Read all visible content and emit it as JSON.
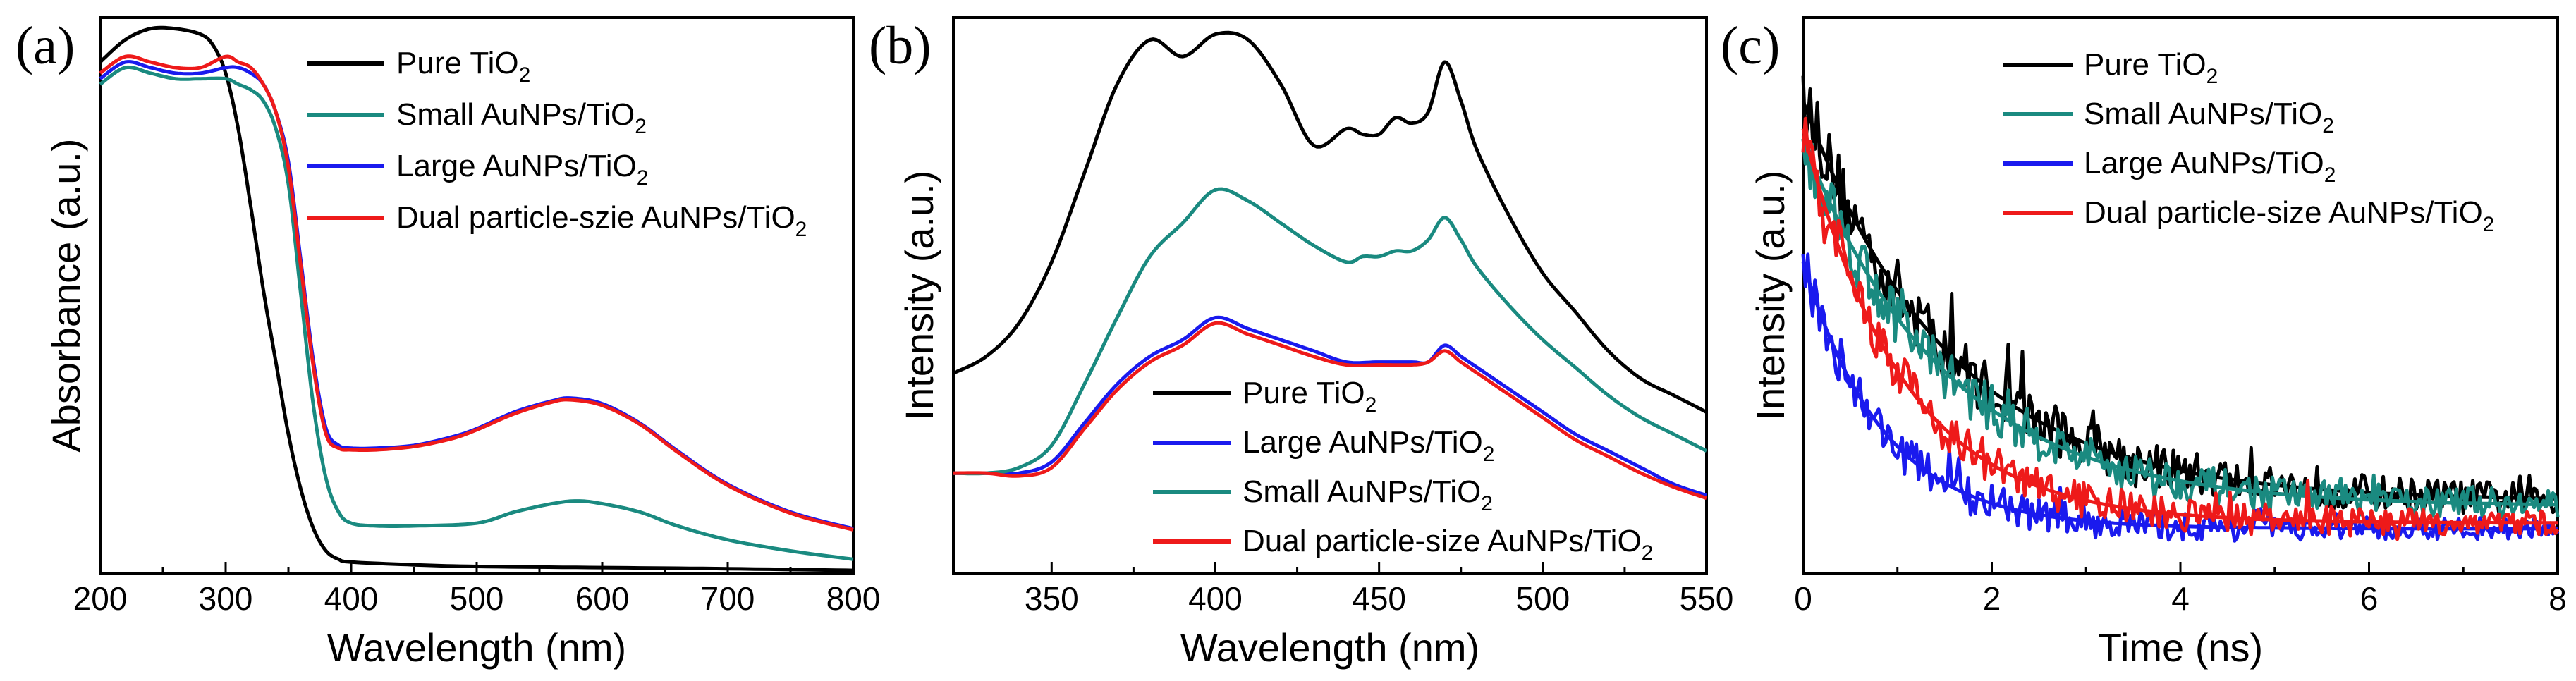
{
  "chart_data": [
    {
      "panel": "(a)",
      "type": "line",
      "xlabel": "Wavelength (nm)",
      "ylabel": "Absorbance (a.u.)",
      "xlim": [
        200,
        800
      ],
      "ylim": [
        0,
        1.0
      ],
      "xticks": [
        200,
        300,
        400,
        500,
        600,
        700,
        800
      ],
      "legend_position": "top-right",
      "series": [
        {
          "name": "Pure TiO2",
          "label_main": "Pure TiO",
          "label_sub": "2",
          "label_after": "",
          "color": "#000000",
          "x": [
            200,
            220,
            240,
            260,
            280,
            290,
            300,
            310,
            320,
            330,
            340,
            350,
            360,
            370,
            380,
            390,
            400,
            450,
            500,
            600,
            700,
            800
          ],
          "y": [
            0.92,
            0.96,
            0.98,
            0.98,
            0.97,
            0.95,
            0.9,
            0.8,
            0.66,
            0.51,
            0.38,
            0.25,
            0.15,
            0.08,
            0.04,
            0.025,
            0.02,
            0.015,
            0.012,
            0.01,
            0.008,
            0.005
          ]
        },
        {
          "name": "Small AuNPs/TiO2",
          "label_main": "Small AuNPs/TiO",
          "label_sub": "2",
          "label_after": "",
          "color": "#1a8a80",
          "x": [
            200,
            220,
            240,
            260,
            280,
            300,
            310,
            320,
            330,
            340,
            350,
            360,
            370,
            380,
            390,
            400,
            420,
            450,
            500,
            530,
            560,
            580,
            600,
            630,
            660,
            700,
            750,
            800
          ],
          "y": [
            0.88,
            0.91,
            0.9,
            0.89,
            0.89,
            0.89,
            0.88,
            0.87,
            0.85,
            0.8,
            0.7,
            0.5,
            0.3,
            0.17,
            0.11,
            0.09,
            0.085,
            0.085,
            0.09,
            0.11,
            0.125,
            0.13,
            0.125,
            0.11,
            0.085,
            0.06,
            0.04,
            0.025
          ]
        },
        {
          "name": "Large AuNPs/TiO2",
          "label_main": "Large AuNPs/TiO",
          "label_sub": "2",
          "label_after": "",
          "color": "#1a1aee",
          "x": [
            200,
            220,
            240,
            260,
            280,
            300,
            310,
            320,
            330,
            340,
            350,
            360,
            370,
            380,
            390,
            400,
            420,
            450,
            480,
            500,
            530,
            560,
            575,
            600,
            630,
            660,
            700,
            750,
            800
          ],
          "y": [
            0.89,
            0.92,
            0.91,
            0.9,
            0.9,
            0.91,
            0.91,
            0.9,
            0.88,
            0.83,
            0.74,
            0.56,
            0.38,
            0.26,
            0.23,
            0.225,
            0.225,
            0.23,
            0.245,
            0.26,
            0.29,
            0.31,
            0.315,
            0.305,
            0.27,
            0.22,
            0.16,
            0.11,
            0.08
          ]
        },
        {
          "name": "Dual particle-szie AuNPs/TiO2",
          "label_main": "Dual particle-szie AuNPs/TiO",
          "label_sub": "2",
          "label_after": "",
          "color": "#ee1a1a",
          "x": [
            200,
            220,
            240,
            260,
            280,
            300,
            310,
            320,
            330,
            340,
            350,
            360,
            370,
            380,
            390,
            400,
            420,
            450,
            480,
            500,
            530,
            560,
            575,
            600,
            630,
            660,
            700,
            750,
            800
          ],
          "y": [
            0.9,
            0.93,
            0.92,
            0.91,
            0.91,
            0.93,
            0.92,
            0.91,
            0.88,
            0.83,
            0.73,
            0.55,
            0.37,
            0.25,
            0.225,
            0.222,
            0.222,
            0.228,
            0.242,
            0.258,
            0.287,
            0.308,
            0.312,
            0.302,
            0.268,
            0.218,
            0.158,
            0.108,
            0.078
          ]
        }
      ]
    },
    {
      "panel": "(b)",
      "type": "line",
      "xlabel": "Wavelength (nm)",
      "ylabel": "Intensity (a.u.)",
      "xlim": [
        320,
        550
      ],
      "ylim": [
        0,
        1.0
      ],
      "xticks": [
        350,
        400,
        450,
        500,
        550
      ],
      "legend_position": "bottom-right",
      "series": [
        {
          "name": "Pure TiO2",
          "label_main": "Pure TiO",
          "label_sub": "2",
          "label_after": "",
          "color": "#000000",
          "x": [
            320,
            330,
            340,
            350,
            360,
            370,
            380,
            390,
            400,
            410,
            420,
            430,
            440,
            445,
            450,
            455,
            460,
            465,
            470,
            475,
            480,
            490,
            500,
            510,
            520,
            530,
            540,
            550
          ],
          "y": [
            0.36,
            0.39,
            0.45,
            0.56,
            0.72,
            0.88,
            0.96,
            0.93,
            0.97,
            0.96,
            0.88,
            0.77,
            0.8,
            0.79,
            0.79,
            0.82,
            0.81,
            0.83,
            0.92,
            0.85,
            0.76,
            0.64,
            0.54,
            0.47,
            0.4,
            0.35,
            0.32,
            0.29
          ]
        },
        {
          "name": "Large AuNPs/TiO2",
          "label_main": "Large AuNPs/TiO",
          "label_sub": "2",
          "label_after": "",
          "color": "#1a1aee",
          "x": [
            320,
            330,
            340,
            350,
            360,
            370,
            380,
            390,
            400,
            410,
            420,
            430,
            440,
            450,
            460,
            465,
            470,
            475,
            480,
            490,
            500,
            510,
            520,
            530,
            540,
            550
          ],
          "y": [
            0.18,
            0.18,
            0.18,
            0.2,
            0.27,
            0.34,
            0.39,
            0.42,
            0.46,
            0.44,
            0.42,
            0.4,
            0.38,
            0.38,
            0.38,
            0.38,
            0.41,
            0.39,
            0.37,
            0.33,
            0.29,
            0.25,
            0.22,
            0.19,
            0.16,
            0.14
          ]
        },
        {
          "name": "Small AuNPs/TiO2",
          "label_main": "Small AuNPs/TiO",
          "label_sub": "2",
          "label_after": "",
          "color": "#1a8a80",
          "x": [
            320,
            330,
            340,
            350,
            360,
            370,
            380,
            390,
            400,
            410,
            420,
            430,
            440,
            445,
            450,
            455,
            460,
            465,
            470,
            475,
            480,
            490,
            500,
            510,
            520,
            530,
            540,
            550
          ],
          "y": [
            0.18,
            0.18,
            0.19,
            0.23,
            0.34,
            0.46,
            0.57,
            0.63,
            0.69,
            0.67,
            0.63,
            0.59,
            0.56,
            0.57,
            0.57,
            0.58,
            0.58,
            0.6,
            0.64,
            0.6,
            0.55,
            0.48,
            0.42,
            0.37,
            0.32,
            0.28,
            0.25,
            0.22
          ]
        },
        {
          "name": "Dual particle-size AuNPs/TiO2",
          "label_main": "Dual particle-size AuNPs/TiO",
          "label_sub": "2",
          "label_after": "",
          "color": "#ee1a1a",
          "x": [
            320,
            330,
            340,
            350,
            360,
            370,
            380,
            390,
            400,
            410,
            420,
            430,
            440,
            450,
            460,
            465,
            470,
            475,
            480,
            490,
            500,
            510,
            520,
            530,
            540,
            550
          ],
          "y": [
            0.18,
            0.18,
            0.175,
            0.19,
            0.26,
            0.33,
            0.38,
            0.41,
            0.45,
            0.43,
            0.41,
            0.39,
            0.375,
            0.375,
            0.375,
            0.38,
            0.4,
            0.38,
            0.36,
            0.32,
            0.28,
            0.24,
            0.21,
            0.18,
            0.155,
            0.135
          ]
        }
      ]
    },
    {
      "panel": "(c)",
      "type": "line",
      "xlabel": "Time (ns)",
      "ylabel": "Intensity (a.u.)",
      "xlim": [
        0,
        8
      ],
      "ylim": [
        0,
        1.0
      ],
      "xticks": [
        0,
        2,
        4,
        6,
        8
      ],
      "legend_position": "top-right",
      "series": [
        {
          "name": "Pure TiO2",
          "label_main": "Pure TiO",
          "label_sub": "2",
          "label_after": "",
          "color": "#000000",
          "decay": {
            "base": 0.13,
            "amplitude": 0.72,
            "tau": 1.55
          },
          "noise": 0.045
        },
        {
          "name": "Small AuNPs/TiO2",
          "label_main": "Small AuNPs/TiO",
          "label_sub": "2",
          "label_after": "",
          "color": "#1a8a80",
          "decay": {
            "base": 0.12,
            "amplitude": 0.66,
            "tau": 1.5
          },
          "noise": 0.04
        },
        {
          "name": "Large AuNPs/TiO2",
          "label_main": "Large AuNPs/TiO",
          "label_sub": "2",
          "label_after": "",
          "color": "#1a1aee",
          "decay": {
            "base": 0.08,
            "amplitude": 0.48,
            "tau": 0.85
          },
          "noise": 0.03
        },
        {
          "name": "Dual particle-size AuNPs/TiO2",
          "label_main": "Dual particle-size AuNPs/TiO",
          "label_sub": "2",
          "label_after": "",
          "color": "#ee1a1a",
          "decay": {
            "base": 0.09,
            "amplitude": 0.71,
            "tau": 1.05
          },
          "noise": 0.035
        }
      ]
    }
  ]
}
